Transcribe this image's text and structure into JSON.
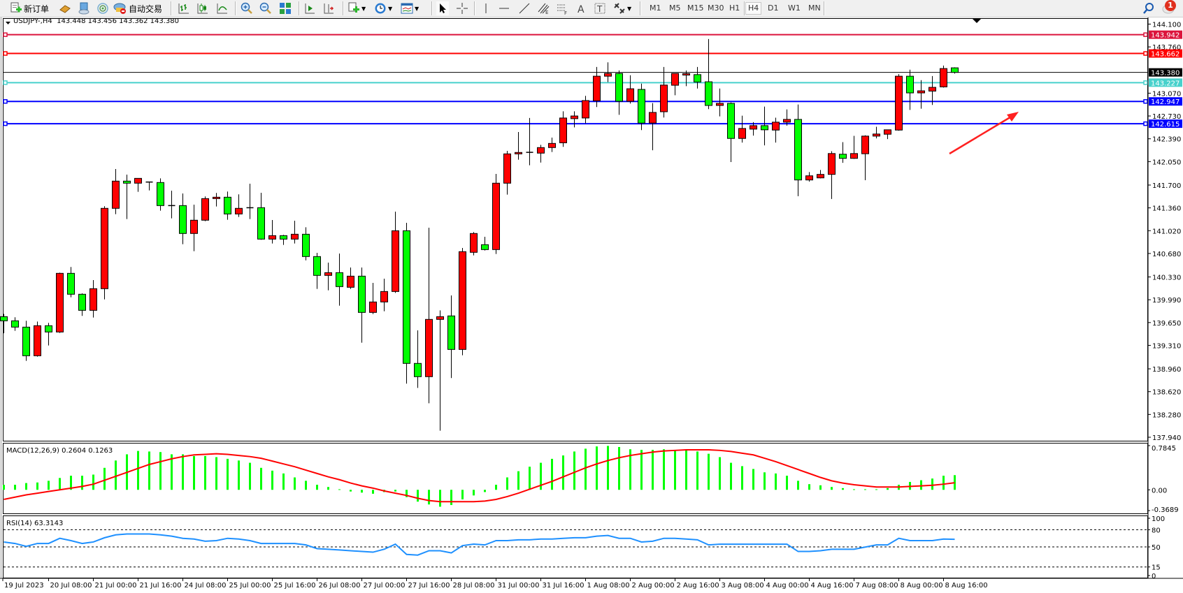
{
  "toolbar": {
    "new_order_label": "新订单",
    "auto_trading_label": "自动交易",
    "timeframes": [
      "M1",
      "M5",
      "M15",
      "M30",
      "H1",
      "H4",
      "D1",
      "W1",
      "MN"
    ],
    "active_timeframe": "H4",
    "notification_count": "1",
    "icons": [
      "new-order-icon",
      "gold-bars-icon",
      "server-icon",
      "signal-icon",
      "auto-trading-icon",
      "bar-chart-icon",
      "candlestick-icon",
      "line-chart-icon",
      "zoom-in-icon",
      "zoom-out-icon",
      "tile-windows-icon",
      "autoscroll-icon",
      "chart-shift-icon",
      "indicators-icon",
      "periods-clock-icon",
      "templates-icon",
      "cursor-icon",
      "crosshair-icon",
      "vertical-line-icon",
      "horizontal-line-icon",
      "trendline-icon",
      "equidistant-channel-icon",
      "fibonacci-icon",
      "text-icon",
      "text-label-icon",
      "arrows-icon",
      "search-icon",
      "chat-icon"
    ]
  },
  "chart": {
    "symbol_line": "USDJPY-,H4  143.448 143.456 143.362 143.380"
  },
  "chart_data": {
    "type": "candlestick",
    "symbol": "USDJPY-",
    "timeframe": "H4",
    "ohlc_order": [
      "open",
      "high",
      "low",
      "close"
    ],
    "up_color": "#ff0000",
    "down_color": "#00ff00",
    "ylim": [
      137.94,
      144.1
    ],
    "price_ticks": [
      "144.100",
      "143.760",
      "143.070",
      "142.730",
      "142.390",
      "142.050",
      "141.700",
      "141.360",
      "141.020",
      "140.680",
      "140.330",
      "139.990",
      "139.650",
      "139.310",
      "138.960",
      "138.620",
      "138.280",
      "137.940"
    ],
    "time_labels": [
      "19 Jul 2023",
      "20 Jul 08:00",
      "21 Jul 00:00",
      "21 Jul 16:00",
      "24 Jul 08:00",
      "25 Jul 00:00",
      "25 Jul 16:00",
      "26 Jul 08:00",
      "27 Jul 00:00",
      "27 Jul 16:00",
      "28 Jul 08:00",
      "31 Jul 00:00",
      "31 Jul 16:00",
      "1 Aug 08:00",
      "2 Aug 00:00",
      "2 Aug 16:00",
      "3 Aug 08:00",
      "4 Aug 00:00",
      "4 Aug 16:00",
      "7 Aug 08:00",
      "8 Aug 00:00",
      "8 Aug 16:00"
    ],
    "current_price": {
      "value": "143.380",
      "color": "#000000"
    },
    "horizontal_lines": [
      {
        "value": "143.942",
        "color": "#dc143c"
      },
      {
        "value": "143.662",
        "color": "#ff0000"
      },
      {
        "value": "143.227",
        "color": "#48d1cc"
      },
      {
        "value": "142.947",
        "color": "#0000ff"
      },
      {
        "value": "142.615",
        "color": "#0000ff"
      }
    ],
    "candles": [
      [
        139.738,
        139.78,
        139.49,
        139.676
      ],
      [
        139.676,
        139.728,
        139.527,
        139.582
      ],
      [
        139.582,
        139.676,
        139.079,
        139.155
      ],
      [
        139.155,
        139.665,
        139.141,
        139.603
      ],
      [
        139.603,
        139.645,
        139.308,
        139.509
      ],
      [
        139.509,
        140.394,
        139.495,
        140.384
      ],
      [
        140.384,
        140.478,
        140.027,
        140.072
      ],
      [
        140.072,
        140.085,
        139.749,
        139.832
      ],
      [
        139.832,
        140.283,
        139.725,
        140.155
      ],
      [
        140.155,
        141.384,
        139.995,
        141.353
      ],
      [
        141.353,
        141.939,
        141.266,
        141.759
      ],
      [
        141.759,
        141.856,
        141.193,
        141.728
      ],
      [
        141.728,
        141.8,
        141.599,
        141.8
      ],
      [
        141.745,
        141.752,
        141.62,
        141.742
      ],
      [
        141.738,
        141.8,
        141.318,
        141.394
      ],
      [
        141.394,
        141.616,
        141.203,
        141.39
      ],
      [
        141.394,
        141.575,
        140.818,
        140.978
      ],
      [
        140.978,
        141.408,
        140.714,
        141.176
      ],
      [
        141.176,
        141.53,
        141.162,
        141.498
      ],
      [
        141.498,
        141.582,
        141.38,
        141.519
      ],
      [
        141.519,
        141.603,
        141.183,
        141.269
      ],
      [
        141.269,
        141.561,
        141.224,
        141.353
      ],
      [
        141.358,
        141.72,
        141.193,
        141.362
      ],
      [
        141.363,
        141.585,
        140.884,
        140.894
      ],
      [
        140.894,
        141.179,
        140.828,
        140.946
      ],
      [
        140.946,
        140.957,
        140.808,
        140.894
      ],
      [
        140.894,
        141.169,
        140.828,
        140.967
      ],
      [
        140.967,
        141.071,
        140.578,
        140.634
      ],
      [
        140.634,
        140.69,
        140.152,
        140.353
      ],
      [
        140.353,
        140.544,
        140.131,
        140.394
      ],
      [
        140.394,
        140.679,
        139.902,
        140.186
      ],
      [
        140.176,
        140.471,
        140.152,
        140.342
      ],
      [
        140.342,
        140.471,
        139.35,
        139.801
      ],
      [
        139.801,
        140.242,
        139.777,
        139.957
      ],
      [
        139.957,
        140.304,
        139.818,
        140.113
      ],
      [
        140.113,
        141.304,
        140.092,
        141.019
      ],
      [
        141.019,
        141.137,
        138.739,
        139.041
      ],
      [
        139.041,
        139.534,
        138.676,
        138.843
      ],
      [
        138.843,
        141.064,
        138.447,
        139.697
      ],
      [
        139.697,
        139.832,
        138.037,
        139.738
      ],
      [
        139.749,
        140.054,
        138.822,
        139.249
      ],
      [
        139.249,
        140.762,
        139.162,
        140.707
      ],
      [
        140.697,
        140.999,
        140.651,
        140.978
      ],
      [
        140.811,
        140.929,
        140.724,
        140.738
      ],
      [
        140.738,
        141.866,
        140.672,
        141.728
      ],
      [
        141.728,
        142.21,
        141.557,
        142.165
      ],
      [
        142.165,
        142.491,
        142.078,
        142.186
      ],
      [
        142.186,
        142.7,
        141.995,
        142.188
      ],
      [
        142.176,
        142.3,
        142.036,
        142.259
      ],
      [
        142.259,
        142.408,
        142.193,
        142.321
      ],
      [
        142.33,
        142.8,
        142.27,
        142.7
      ],
      [
        142.69,
        142.8,
        142.56,
        142.73
      ],
      [
        142.7,
        143.03,
        142.62,
        142.96
      ],
      [
        142.956,
        143.461,
        142.863,
        143.323
      ],
      [
        143.323,
        143.53,
        143.236,
        143.364
      ],
      [
        143.364,
        143.409,
        142.748,
        142.949
      ],
      [
        142.949,
        143.337,
        142.915,
        143.136
      ],
      [
        143.126,
        143.212,
        142.52,
        142.624
      ],
      [
        142.624,
        142.922,
        142.219,
        142.783
      ],
      [
        142.793,
        143.461,
        142.707,
        143.191
      ],
      [
        143.188,
        143.364,
        143.039,
        143.364
      ],
      [
        143.34,
        143.409,
        143.174,
        143.361
      ],
      [
        143.347,
        143.461,
        143.139,
        143.236
      ],
      [
        143.24,
        143.877,
        142.832,
        142.887
      ],
      [
        142.887,
        143.139,
        142.724,
        142.918
      ],
      [
        142.918,
        142.932,
        142.043,
        142.395
      ],
      [
        142.395,
        142.735,
        142.333,
        142.544
      ],
      [
        142.534,
        142.638,
        142.437,
        142.586
      ],
      [
        142.586,
        142.87,
        142.292,
        142.524
      ],
      [
        142.52,
        142.704,
        142.333,
        142.638
      ],
      [
        142.638,
        142.828,
        142.586,
        142.679
      ],
      [
        142.679,
        142.901,
        141.534,
        141.776
      ],
      [
        141.776,
        141.894,
        141.752,
        141.838
      ],
      [
        141.807,
        141.925,
        141.8,
        141.859
      ],
      [
        141.859,
        142.205,
        141.492,
        142.17
      ],
      [
        142.16,
        142.34,
        142.032,
        142.098
      ],
      [
        142.098,
        142.434,
        142.09,
        142.17
      ],
      [
        142.167,
        142.441,
        141.773,
        142.43
      ],
      [
        142.43,
        142.569,
        142.396,
        142.461
      ],
      [
        142.458,
        142.524,
        142.385,
        142.524
      ],
      [
        142.52,
        143.354,
        142.51,
        143.323
      ],
      [
        143.323,
        143.42,
        142.821,
        143.074
      ],
      [
        143.074,
        143.264,
        142.838,
        143.105
      ],
      [
        143.101,
        143.326,
        142.894,
        143.157
      ],
      [
        143.164,
        143.482,
        143.153,
        143.437
      ],
      [
        143.448,
        143.456,
        143.362,
        143.38
      ]
    ],
    "macd": {
      "label": "MACD(12,26,9) 0.2604 0.1263",
      "ylim": [
        -0.3689,
        0.7845
      ],
      "ticks": [
        "0.7845",
        "0.00",
        "-0.3689"
      ],
      "histogram_color": "#00ff00",
      "signal_color": "#ff0000",
      "histogram": [
        0.09,
        0.09,
        0.12,
        0.13,
        0.16,
        0.21,
        0.25,
        0.25,
        0.27,
        0.39,
        0.52,
        0.63,
        0.69,
        0.68,
        0.67,
        0.63,
        0.63,
        0.6,
        0.6,
        0.58,
        0.55,
        0.52,
        0.48,
        0.39,
        0.34,
        0.29,
        0.22,
        0.16,
        0.09,
        0.05,
        0.01,
        -0.03,
        -0.05,
        -0.07,
        -0.04,
        -0.03,
        -0.13,
        -0.21,
        -0.26,
        -0.3,
        -0.27,
        -0.17,
        -0.1,
        -0.04,
        0.09,
        0.22,
        0.33,
        0.41,
        0.48,
        0.55,
        0.61,
        0.68,
        0.73,
        0.77,
        0.78,
        0.76,
        0.72,
        0.71,
        0.71,
        0.72,
        0.71,
        0.71,
        0.68,
        0.64,
        0.58,
        0.48,
        0.42,
        0.37,
        0.31,
        0.29,
        0.25,
        0.16,
        0.1,
        0.08,
        0.05,
        0.03,
        0.01,
        0.01,
        0.01,
        0.03,
        0.09,
        0.14,
        0.17,
        0.2,
        0.25,
        0.2604
      ],
      "signal": [
        -0.17,
        -0.13,
        -0.09,
        -0.06,
        -0.03,
        0.0,
        0.03,
        0.06,
        0.1,
        0.17,
        0.24,
        0.31,
        0.38,
        0.45,
        0.5,
        0.55,
        0.59,
        0.62,
        0.63,
        0.64,
        0.63,
        0.61,
        0.59,
        0.56,
        0.51,
        0.46,
        0.41,
        0.35,
        0.29,
        0.23,
        0.18,
        0.12,
        0.07,
        0.03,
        -0.02,
        -0.06,
        -0.1,
        -0.15,
        -0.19,
        -0.21,
        -0.21,
        -0.21,
        -0.21,
        -0.2,
        -0.17,
        -0.12,
        -0.06,
        0.01,
        0.08,
        0.15,
        0.23,
        0.31,
        0.39,
        0.46,
        0.52,
        0.57,
        0.61,
        0.64,
        0.67,
        0.69,
        0.7,
        0.71,
        0.71,
        0.71,
        0.7,
        0.68,
        0.65,
        0.62,
        0.56,
        0.5,
        0.43,
        0.36,
        0.29,
        0.22,
        0.16,
        0.12,
        0.09,
        0.07,
        0.05,
        0.05,
        0.05,
        0.06,
        0.07,
        0.08,
        0.1,
        0.1263
      ]
    },
    "rsi": {
      "label": "RSI(14) 63.3143",
      "ylim": [
        0,
        100
      ],
      "ticks": [
        "100",
        "80",
        "50",
        "15",
        "0"
      ],
      "levels": [
        80,
        50,
        15
      ],
      "line_color": "#1e90ff",
      "values": [
        58.6,
        56,
        51,
        56,
        56,
        65,
        61,
        56,
        58.6,
        66,
        71,
        72.6,
        72.6,
        72.6,
        71,
        68.8,
        65,
        63.7,
        59.9,
        61,
        65,
        63.7,
        61,
        56,
        56,
        56,
        56,
        53.5,
        47,
        45.9,
        44.6,
        43.3,
        42,
        40.8,
        45.9,
        54.8,
        36.9,
        35.7,
        43.3,
        43.3,
        39.5,
        52.2,
        54.8,
        53.5,
        61,
        61,
        62.4,
        62.4,
        63.7,
        63.7,
        65,
        66,
        66,
        68.8,
        70,
        65,
        65,
        58.6,
        59.9,
        65,
        65,
        63.7,
        62.4,
        53.5,
        54.8,
        54.8,
        54.8,
        54.8,
        54.8,
        54.8,
        54.8,
        42,
        42,
        43.3,
        45.9,
        45.9,
        45.9,
        49.7,
        53.5,
        53.5,
        65,
        61,
        61,
        61,
        63.7,
        63.3143
      ]
    }
  }
}
